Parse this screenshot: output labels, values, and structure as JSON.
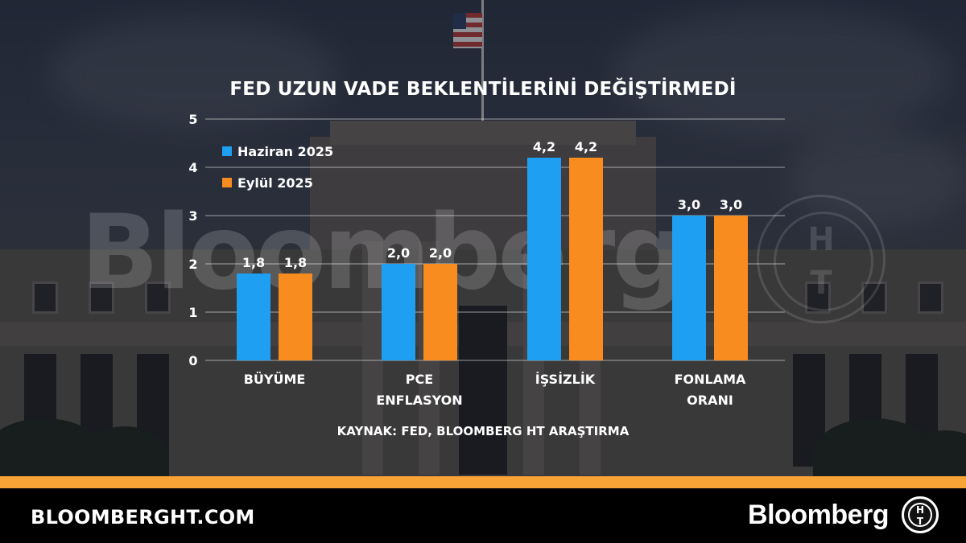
{
  "chart_data": {
    "type": "bar",
    "title": "FED UZUN VADE BEKLENTİLERİNİ DEĞİŞTİRMEDİ",
    "categories": [
      [
        "BÜYÜME"
      ],
      [
        "PCE",
        "ENFLASYON"
      ],
      [
        "İŞSİZLİK"
      ],
      [
        "FONLAMA",
        "ORANI"
      ]
    ],
    "series": [
      {
        "name": "Haziran 2025",
        "color": "#1e9ff2",
        "values": [
          1.8,
          2.0,
          4.2,
          3.0
        ],
        "labels": [
          "1,8",
          "2,0",
          "4,2",
          "3,0"
        ]
      },
      {
        "name": "Eylül 2025",
        "color": "#f88c1e",
        "values": [
          1.8,
          2.0,
          4.2,
          3.0
        ],
        "labels": [
          "1,8",
          "2,0",
          "4,2",
          "3,0"
        ]
      }
    ],
    "yticks": [
      "0",
      "1",
      "2",
      "3",
      "4",
      "5"
    ],
    "ylim": [
      0,
      5
    ],
    "grid": true,
    "legend_position": "top-left",
    "source": "KAYNAK: FED, BLOOMBERG HT ARAŞTIRMA"
  },
  "watermark": {
    "text": "Bloomberg",
    "logo_letters": [
      "H",
      "T"
    ]
  },
  "footer": {
    "site": "BLOOMBERGHT.COM",
    "brand": "Bloomberg",
    "logo_letters": [
      "H",
      "T"
    ],
    "accent_color": "#f7a335"
  }
}
